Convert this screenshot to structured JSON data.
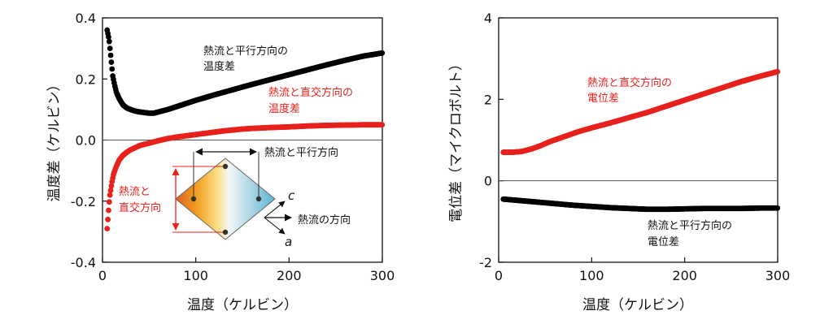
{
  "charts": [
    {
      "ylabel": "温度差（ケルビン）",
      "xlabel": "温度（ケルビン）",
      "annotations": {
        "parallel_line1": "熱流と平行方向の",
        "parallel_line2": "温度差",
        "perp_line1": "熱流と直交方向の",
        "perp_line2": "温度差",
        "inset_parallel": "熱流と平行方向",
        "inset_perp_line1": "熱流と",
        "inset_perp_line2": "直交方向",
        "inset_heatflow": "熱流の方向",
        "inset_axis_c": "c",
        "inset_axis_a": "a"
      }
    },
    {
      "ylabel": "電位差（マイクロボルト）",
      "xlabel": "温度（ケルビン）",
      "annotations": {
        "perp_line1": "熱流と直交方向の",
        "perp_line2": "電位差",
        "parallel_line1": "熱流と平行方向の",
        "parallel_line2": "電位差"
      }
    }
  ],
  "colors": {
    "black_series": "#000000",
    "red_series": "#e8211c",
    "zero_line": "#555555"
  },
  "chart_data": [
    {
      "type": "scatter",
      "title": "",
      "xlabel": "温度（ケルビン）",
      "ylabel": "温度差（ケルビン）",
      "xlim": [
        0,
        300
      ],
      "ylim": [
        -0.4,
        0.4
      ],
      "xticks": [
        0,
        100,
        200,
        300
      ],
      "yticks": [
        -0.4,
        -0.2,
        0.0,
        0.2,
        0.4
      ],
      "zero_line": true,
      "grid": false,
      "legend": "none",
      "series": [
        {
          "color": "#000000",
          "x": [
            5,
            7,
            9,
            11,
            13,
            15,
            18,
            22,
            26,
            30,
            35,
            40,
            45,
            50,
            55,
            60,
            70,
            80,
            90,
            100,
            120,
            140,
            160,
            180,
            200,
            220,
            240,
            260,
            280,
            300
          ],
          "y": [
            0.36,
            0.33,
            0.27,
            0.21,
            0.18,
            0.155,
            0.135,
            0.115,
            0.105,
            0.1,
            0.095,
            0.092,
            0.09,
            0.088,
            0.088,
            0.092,
            0.1,
            0.11,
            0.12,
            0.13,
            0.148,
            0.165,
            0.182,
            0.198,
            0.214,
            0.23,
            0.246,
            0.261,
            0.275,
            0.285
          ]
        },
        {
          "color": "#e8211c",
          "x": [
            5,
            6,
            7,
            8,
            10,
            12,
            15,
            18,
            22,
            26,
            30,
            35,
            40,
            50,
            60,
            70,
            80,
            90,
            100,
            110,
            120,
            130,
            140,
            150,
            160,
            180,
            200,
            220,
            240,
            260,
            280,
            300
          ],
          "y": [
            -0.29,
            -0.25,
            -0.21,
            -0.18,
            -0.14,
            -0.11,
            -0.085,
            -0.065,
            -0.05,
            -0.04,
            -0.032,
            -0.025,
            -0.018,
            -0.01,
            -0.002,
            0.005,
            0.01,
            0.014,
            0.018,
            0.022,
            0.026,
            0.03,
            0.033,
            0.036,
            0.038,
            0.041,
            0.043,
            0.046,
            0.048,
            0.049,
            0.05,
            0.05
          ]
        }
      ]
    },
    {
      "type": "scatter",
      "title": "",
      "xlabel": "温度（ケルビン）",
      "ylabel": "電位差（マイクロボルト）",
      "xlim": [
        0,
        300
      ],
      "ylim": [
        -2,
        4
      ],
      "xticks": [
        0,
        100,
        200,
        300
      ],
      "yticks": [
        -2,
        0,
        2,
        4
      ],
      "zero_line": true,
      "grid": false,
      "legend": "none",
      "series": [
        {
          "color": "#e8211c",
          "x": [
            5,
            15,
            25,
            35,
            45,
            55,
            65,
            75,
            85,
            100,
            120,
            140,
            160,
            180,
            200,
            220,
            240,
            260,
            280,
            300
          ],
          "y": [
            0.7,
            0.7,
            0.72,
            0.78,
            0.86,
            0.96,
            1.04,
            1.12,
            1.2,
            1.3,
            1.42,
            1.55,
            1.68,
            1.83,
            1.98,
            2.13,
            2.28,
            2.43,
            2.56,
            2.68
          ]
        },
        {
          "color": "#000000",
          "x": [
            5,
            20,
            40,
            60,
            80,
            100,
            120,
            140,
            160,
            180,
            200,
            220,
            240,
            260,
            280,
            300
          ],
          "y": [
            -0.45,
            -0.48,
            -0.52,
            -0.56,
            -0.6,
            -0.63,
            -0.66,
            -0.68,
            -0.7,
            -0.7,
            -0.69,
            -0.68,
            -0.68,
            -0.68,
            -0.67,
            -0.67
          ]
        }
      ]
    }
  ]
}
